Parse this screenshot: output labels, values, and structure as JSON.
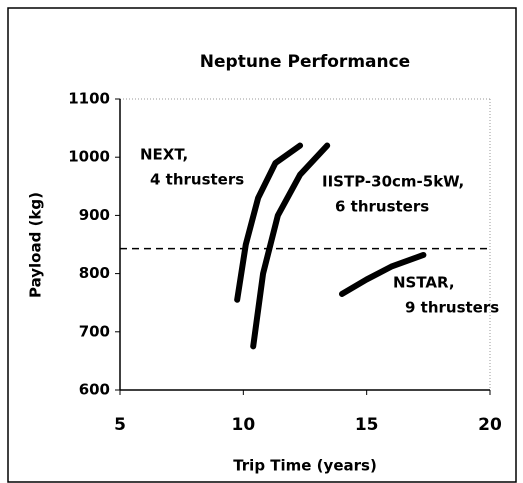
{
  "chart_data": {
    "type": "line",
    "title": "Neptune Performance",
    "xlabel": "Trip Time (years)",
    "ylabel": "Payload (kg)",
    "xlim": [
      5,
      20
    ],
    "xticks": [
      5,
      10,
      15,
      20
    ],
    "ylim": [
      600,
      1100
    ],
    "yticks": [
      600,
      700,
      800,
      900,
      1000,
      1100
    ],
    "series": [
      {
        "name": "NEXT",
        "color": "#000000",
        "x": [
          9.75,
          10.1,
          10.6,
          11.3,
          12.3
        ],
        "values": [
          755,
          850,
          930,
          990,
          1020
        ]
      },
      {
        "name": "IISTP-30cm-5kW",
        "color": "#000000",
        "x": [
          10.4,
          10.8,
          11.4,
          12.3,
          13.4
        ],
        "values": [
          675,
          800,
          900,
          970,
          1020
        ]
      },
      {
        "name": "NSTAR",
        "color": "#000000",
        "x": [
          14.0,
          15.0,
          16.0,
          17.3
        ],
        "values": [
          765,
          790,
          812,
          832
        ]
      }
    ],
    "reference_line": {
      "y": 843,
      "style": "dashed"
    },
    "annotations": [
      [
        "NEXT,",
        "4 thrusters"
      ],
      [
        "IISTP-30cm-5kW,",
        "6 thrusters"
      ],
      [
        "NSTAR,",
        "9 thrusters"
      ]
    ]
  }
}
